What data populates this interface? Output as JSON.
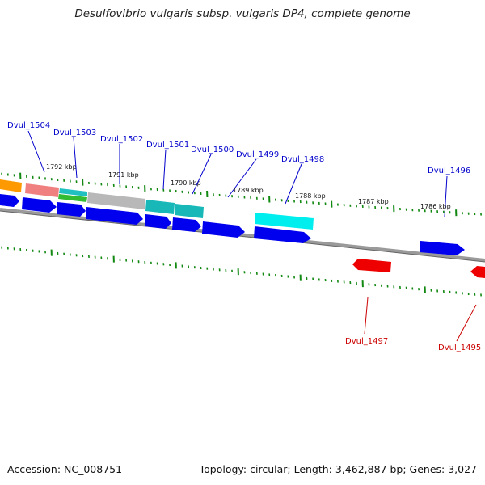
{
  "title": "Desulfovibrio vulgaris subsp. vulgaris DP4, complete genome",
  "footer": {
    "accession": "Accession: NC_008751",
    "topology": "Topology: circular; Length: 3,462,887 bp; Genes: 3,027"
  },
  "colors": {
    "forward_label": "#0000cc",
    "reverse_label": "#cc0000",
    "forward_gene": "#0000ee",
    "reverse_gene": "#ee0000",
    "backbone": "#808080",
    "tick": "#118811"
  },
  "kbp_ticks": [
    "1792 kbp",
    "1791 kbp",
    "1790 kbp",
    "1789 kbp",
    "1788 kbp",
    "1787 kbp",
    "1786 kbp"
  ],
  "genes_forward": [
    "Dvul_1504",
    "Dvul_1503",
    "Dvul_1502",
    "Dvul_1501",
    "Dvul_1500",
    "Dvul_1499",
    "Dvul_1498",
    "Dvul_1496"
  ],
  "genes_reverse": [
    "Dvul_1497",
    "Dvul_1495"
  ]
}
